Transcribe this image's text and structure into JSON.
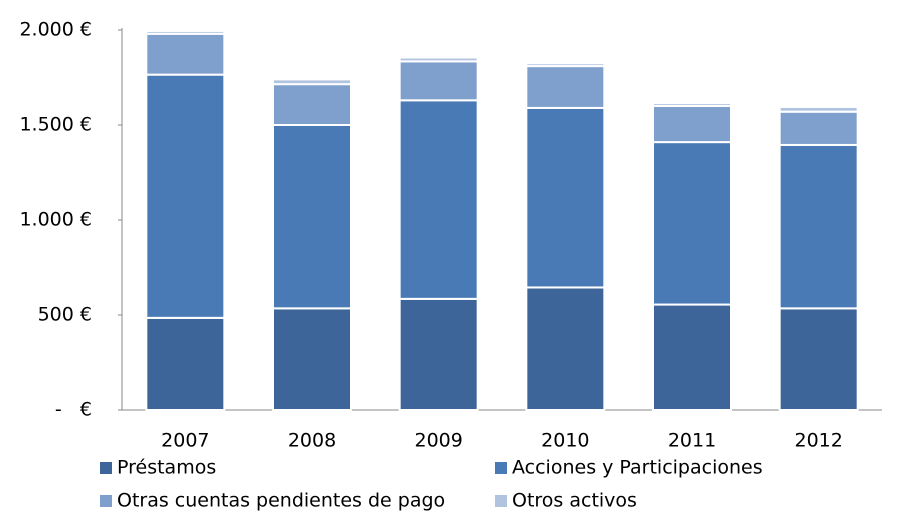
{
  "chart_data": {
    "type": "bar",
    "stacked": true,
    "categories": [
      "2007",
      "2008",
      "2009",
      "2010",
      "2011",
      "2012"
    ],
    "series": [
      {
        "name": "Préstamos",
        "color": "#3e6599",
        "values": [
          485,
          535,
          585,
          645,
          555,
          535
        ]
      },
      {
        "name": "Acciones y Participaciones",
        "color": "#4a7ab5",
        "values": [
          1280,
          965,
          1045,
          945,
          855,
          860
        ]
      },
      {
        "name": "Otras cuentas pendientes de pago",
        "color": "#7f9fcc",
        "values": [
          215,
          215,
          205,
          220,
          190,
          175
        ]
      },
      {
        "name": "Otros activos",
        "color": "#b0c4e0",
        "values": [
          15,
          25,
          20,
          15,
          15,
          25
        ]
      }
    ],
    "ylim": [
      0,
      2000
    ],
    "yticks": [
      {
        "value": 0,
        "label": "-   €"
      },
      {
        "value": 500,
        "label": "500 €"
      },
      {
        "value": 1000,
        "label": "1.000 €"
      },
      {
        "value": 1500,
        "label": "1.500 €"
      },
      {
        "value": 2000,
        "label": "2.000 €"
      }
    ],
    "grid": false,
    "legend": "bottom"
  }
}
